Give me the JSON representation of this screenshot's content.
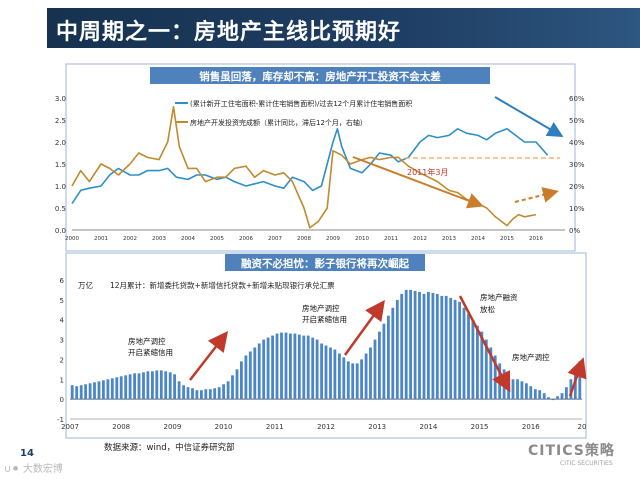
{
  "header": {
    "title": "中周期之一：房地产主线比预期好",
    "page_number": "14"
  },
  "footer": {
    "source": "数据来源：wind，中信证券研究部",
    "watermark_left": "∪⚫ 大数宏博",
    "watermark_right": "CITICS策略",
    "brand_sub": "CITIC SECURITIES"
  },
  "colors": {
    "header_bg": "#1f3e64",
    "panel_title_bg": "#4f81bd",
    "series_blue": "#2e8fc8",
    "series_orange": "#c08a2e",
    "arrow_orange": "#c97d2a",
    "arrow_blue": "#2e7fbf",
    "arrow_red": "#c0392b",
    "bar_blue": "#4a86c8",
    "dash_orange": "#f0b27a"
  },
  "chart_data": [
    {
      "type": "line",
      "title": "销售虽回落，库存却不高：房地产开工投资不会太差",
      "x_axis_labels": [
        "2000",
        "2001",
        "2002",
        "2003",
        "2004",
        "2005",
        "2006",
        "2007",
        "2008",
        "2009",
        "2010",
        "2011",
        "2012",
        "2013",
        "2014",
        "2015",
        "2016"
      ],
      "ylim_left": [
        0,
        3.0
      ],
      "yticks_left": [
        "0.0",
        "0.5",
        "1.0",
        "1.5",
        "2.0",
        "2.5",
        "3.0"
      ],
      "ylim_right": [
        0,
        60
      ],
      "yticks_right": [
        "0%",
        "10%",
        "20%",
        "30%",
        "40%",
        "50%",
        "60%"
      ],
      "annotation": "2011年3月",
      "series": [
        {
          "name": "(累计新开工住宅面积-累计住宅销售面积)/过去12个月累计住宅销售面积",
          "axis": "left",
          "values": [
            {
              "x": 2000.0,
              "y": 0.6
            },
            {
              "x": 2000.3,
              "y": 0.9
            },
            {
              "x": 2000.6,
              "y": 0.95
            },
            {
              "x": 2001.0,
              "y": 1.0
            },
            {
              "x": 2001.3,
              "y": 1.25
            },
            {
              "x": 2001.6,
              "y": 1.4
            },
            {
              "x": 2002.0,
              "y": 1.25
            },
            {
              "x": 2002.3,
              "y": 1.25
            },
            {
              "x": 2002.6,
              "y": 1.35
            },
            {
              "x": 2003.0,
              "y": 1.35
            },
            {
              "x": 2003.3,
              "y": 1.4
            },
            {
              "x": 2003.6,
              "y": 1.2
            },
            {
              "x": 2004.0,
              "y": 1.15
            },
            {
              "x": 2004.3,
              "y": 1.25
            },
            {
              "x": 2004.6,
              "y": 1.25
            },
            {
              "x": 2005.0,
              "y": 1.15
            },
            {
              "x": 2005.3,
              "y": 1.2
            },
            {
              "x": 2005.6,
              "y": 1.1
            },
            {
              "x": 2006.0,
              "y": 1.0
            },
            {
              "x": 2006.3,
              "y": 1.05
            },
            {
              "x": 2006.6,
              "y": 1.1
            },
            {
              "x": 2007.0,
              "y": 1.0
            },
            {
              "x": 2007.3,
              "y": 0.95
            },
            {
              "x": 2007.6,
              "y": 1.2
            },
            {
              "x": 2008.0,
              "y": 1.1
            },
            {
              "x": 2008.3,
              "y": 0.9
            },
            {
              "x": 2008.6,
              "y": 1.0
            },
            {
              "x": 2009.0,
              "y": 2.0
            },
            {
              "x": 2009.15,
              "y": 2.3
            },
            {
              "x": 2009.3,
              "y": 1.9
            },
            {
              "x": 2009.6,
              "y": 1.4
            },
            {
              "x": 2010.0,
              "y": 1.3
            },
            {
              "x": 2010.3,
              "y": 1.5
            },
            {
              "x": 2010.6,
              "y": 1.75
            },
            {
              "x": 2011.0,
              "y": 1.7
            },
            {
              "x": 2011.25,
              "y": 1.55
            },
            {
              "x": 2011.6,
              "y": 1.65
            },
            {
              "x": 2012.0,
              "y": 2.0
            },
            {
              "x": 2012.3,
              "y": 2.15
            },
            {
              "x": 2012.6,
              "y": 2.1
            },
            {
              "x": 2013.0,
              "y": 2.15
            },
            {
              "x": 2013.3,
              "y": 2.3
            },
            {
              "x": 2013.6,
              "y": 2.2
            },
            {
              "x": 2014.0,
              "y": 2.15
            },
            {
              "x": 2014.3,
              "y": 2.05
            },
            {
              "x": 2014.6,
              "y": 2.2
            },
            {
              "x": 2015.0,
              "y": 2.3
            },
            {
              "x": 2015.3,
              "y": 2.15
            },
            {
              "x": 2015.6,
              "y": 2.0
            },
            {
              "x": 2016.0,
              "y": 2.0
            },
            {
              "x": 2016.4,
              "y": 1.7
            }
          ]
        },
        {
          "name": "房地产开发投资完成额（累计同比，滞后12个月，右轴）",
          "axis": "right",
          "values": [
            {
              "x": 2000.0,
              "y": 20
            },
            {
              "x": 2000.3,
              "y": 27
            },
            {
              "x": 2000.6,
              "y": 22
            },
            {
              "x": 2001.0,
              "y": 30
            },
            {
              "x": 2001.3,
              "y": 28
            },
            {
              "x": 2001.6,
              "y": 25
            },
            {
              "x": 2002.0,
              "y": 30
            },
            {
              "x": 2002.3,
              "y": 35
            },
            {
              "x": 2002.6,
              "y": 33
            },
            {
              "x": 2003.0,
              "y": 32
            },
            {
              "x": 2003.3,
              "y": 40
            },
            {
              "x": 2003.5,
              "y": 56
            },
            {
              "x": 2003.7,
              "y": 38
            },
            {
              "x": 2004.0,
              "y": 28
            },
            {
              "x": 2004.3,
              "y": 28
            },
            {
              "x": 2004.6,
              "y": 22
            },
            {
              "x": 2005.0,
              "y": 24
            },
            {
              "x": 2005.3,
              "y": 24
            },
            {
              "x": 2005.6,
              "y": 28
            },
            {
              "x": 2006.0,
              "y": 29
            },
            {
              "x": 2006.3,
              "y": 24
            },
            {
              "x": 2006.6,
              "y": 27
            },
            {
              "x": 2007.0,
              "y": 25
            },
            {
              "x": 2007.3,
              "y": 26
            },
            {
              "x": 2007.6,
              "y": 22
            },
            {
              "x": 2008.0,
              "y": 10
            },
            {
              "x": 2008.2,
              "y": 1
            },
            {
              "x": 2008.5,
              "y": 4
            },
            {
              "x": 2008.8,
              "y": 10
            },
            {
              "x": 2009.0,
              "y": 36
            },
            {
              "x": 2009.3,
              "y": 34
            },
            {
              "x": 2009.6,
              "y": 30
            },
            {
              "x": 2010.0,
              "y": 32
            },
            {
              "x": 2010.3,
              "y": 33
            },
            {
              "x": 2010.6,
              "y": 32
            },
            {
              "x": 2011.0,
              "y": 33
            },
            {
              "x": 2011.25,
              "y": 33
            },
            {
              "x": 2011.6,
              "y": 29
            },
            {
              "x": 2012.0,
              "y": 26
            },
            {
              "x": 2012.3,
              "y": 24
            },
            {
              "x": 2012.6,
              "y": 22
            },
            {
              "x": 2013.0,
              "y": 18
            },
            {
              "x": 2013.3,
              "y": 17
            },
            {
              "x": 2013.6,
              "y": 14
            },
            {
              "x": 2014.0,
              "y": 12
            },
            {
              "x": 2014.3,
              "y": 10
            },
            {
              "x": 2014.6,
              "y": 6
            },
            {
              "x": 2015.0,
              "y": 2
            },
            {
              "x": 2015.2,
              "y": 5
            },
            {
              "x": 2015.4,
              "y": 7
            },
            {
              "x": 2015.6,
              "y": 6
            },
            {
              "x": 2016.0,
              "y": 7
            }
          ]
        }
      ]
    },
    {
      "type": "bar",
      "title": "融资不必担忧：影子银行将再次崛起",
      "unit": "万亿",
      "series_label": "12月累计：新增委托贷款+新增信托贷款+新增未贴现银行承兑汇票",
      "x_axis_labels": [
        "2007",
        "2008",
        "2009",
        "2010",
        "2011",
        "2012",
        "2013",
        "2014",
        "2015",
        "2016",
        "20"
      ],
      "ylim": [
        -1,
        6
      ],
      "yticks": [
        "-1",
        "0",
        "1",
        "2",
        "3",
        "4",
        "5",
        "6"
      ],
      "annotations": [
        "房地产调控\n开启紧缩信用",
        "房地产调控\n开启紧缩信用",
        "房地产融资\n放松",
        "房地产调控"
      ],
      "values": [
        0.7,
        0.65,
        0.7,
        0.75,
        0.8,
        0.85,
        0.9,
        0.95,
        1.0,
        1.05,
        1.1,
        1.15,
        1.2,
        1.25,
        1.3,
        1.3,
        1.35,
        1.4,
        1.4,
        1.45,
        1.45,
        1.4,
        1.35,
        1.25,
        0.9,
        0.7,
        0.6,
        0.55,
        0.45,
        0.45,
        0.5,
        0.5,
        0.55,
        0.6,
        0.75,
        0.9,
        1.2,
        1.5,
        1.9,
        2.2,
        2.4,
        2.6,
        2.8,
        3.0,
        3.1,
        3.2,
        3.3,
        3.35,
        3.35,
        3.3,
        3.3,
        3.25,
        3.2,
        3.2,
        3.1,
        3.0,
        2.8,
        2.7,
        2.6,
        2.5,
        2.3,
        2.1,
        1.9,
        1.8,
        1.8,
        2.0,
        2.3,
        2.6,
        3.0,
        3.4,
        3.8,
        4.2,
        4.6,
        5.0,
        5.3,
        5.5,
        5.5,
        5.45,
        5.4,
        5.3,
        5.4,
        5.35,
        5.3,
        5.2,
        5.2,
        5.1,
        5.0,
        4.9,
        4.6,
        4.3,
        4.0,
        3.7,
        3.4,
        3.0,
        2.6,
        2.2,
        1.8,
        1.5,
        1.2,
        1.0,
        1.0,
        0.9,
        0.8,
        0.65,
        0.5,
        0.45,
        0.3,
        0.1,
        -0.05,
        0.15,
        0.3,
        0.6,
        1.0,
        1.5,
        1.9
      ]
    }
  ]
}
